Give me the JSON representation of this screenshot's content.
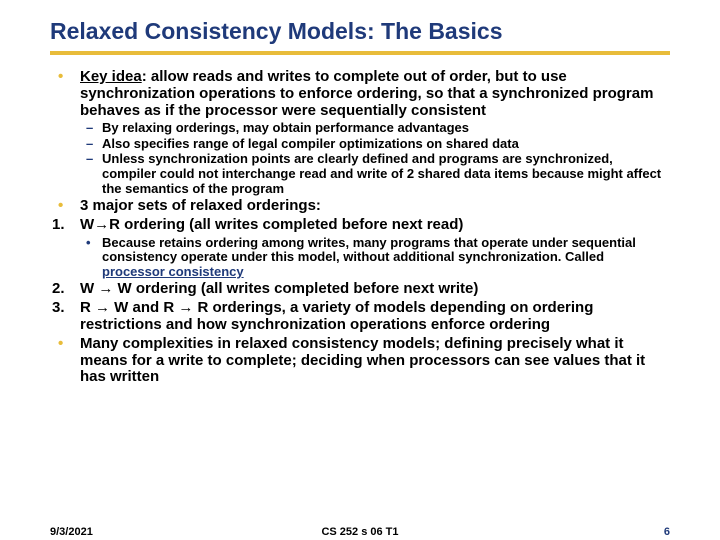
{
  "title": "Relaxed Consistency Models: The Basics",
  "colors": {
    "title": "#1f3a7a",
    "rule": "#e8bc3a",
    "bullet_l1": "#e8bc3a",
    "bullet_l2": "#1f3a7a",
    "link": "#1f3a7a",
    "background": "#ffffff"
  },
  "b1": {
    "lead": "Key idea",
    "text": ": allow reads and writes to complete out of order, but to use synchronization operations to enforce ordering, so that a synchronized program behaves as if the processor were sequentially consistent",
    "sub1": "By relaxing orderings, may obtain performance advantages",
    "sub2": "Also specifies range of legal compiler optimizations on shared data",
    "sub3": "Unless synchronization points are clearly defined and programs are synchronized, compiler could not interchange read and write of 2 shared data items because might affect the semantics of the program"
  },
  "b2": "3 major sets of relaxed orderings:",
  "b3": {
    "text": "W→R ordering (all writes completed before next read)",
    "sub1a": "Because retains ordering among writes, many programs that operate under sequential consistency operate under this model, without additional synchronization. Called ",
    "sub1b": "processor consistency"
  },
  "b4": "W → W ordering (all writes completed before next write)",
  "b5": "R → W and R → R orderings, a variety of models depending on ordering restrictions and how synchronization operations enforce ordering",
  "b6": "Many complexities in relaxed consistency models; defining precisely what it means for a write to complete; deciding when processors can see values that it has written",
  "footer": {
    "date": "9/3/2021",
    "mid": "CS 252 s 06 T1",
    "page": "6"
  }
}
